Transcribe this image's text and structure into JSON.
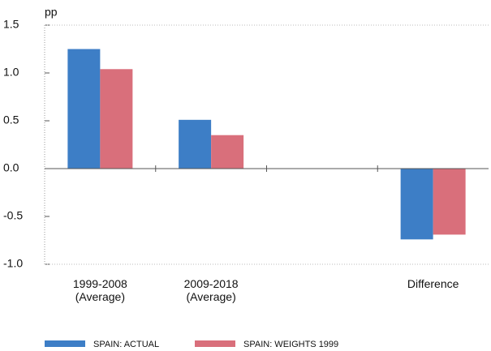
{
  "chart_data": {
    "type": "bar",
    "y_label": "pp",
    "categories": [
      "1999-2008\n(Average)",
      "2009-2018\n(Average)",
      null,
      "Difference"
    ],
    "series": [
      {
        "name": "SPAIN: ACTUAL",
        "color": "#3d7ec6",
        "values": [
          1.25,
          0.51,
          null,
          -0.74
        ]
      },
      {
        "name": "SPAIN: WEIGHTS 1999",
        "color": "#d96f7b",
        "values": [
          1.04,
          0.35,
          null,
          -0.69
        ]
      }
    ],
    "ylim": [
      -1,
      1.5
    ],
    "yticks": [
      {
        "value": -1,
        "label": "-1.0"
      },
      -0.5,
      {
        "value": 0,
        "label": "0.0"
      },
      0.5,
      {
        "value": 1,
        "label": "1.0"
      },
      1.5
    ],
    "legend": "bottom"
  }
}
